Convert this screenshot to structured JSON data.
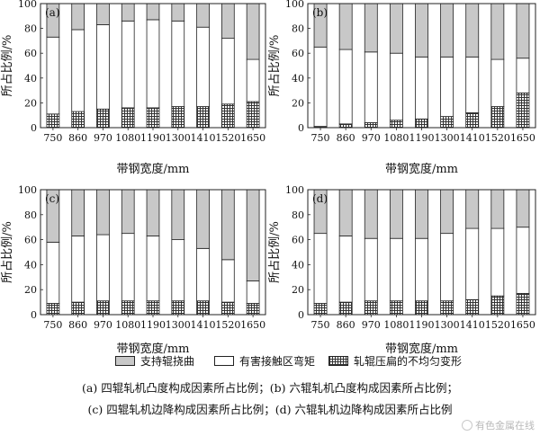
{
  "chart_data": [
    {
      "type": "bar",
      "panel_label": "(a)",
      "categories": [
        "750",
        "860",
        "970",
        "1080",
        "1190",
        "1300",
        "1410",
        "1520",
        "1650"
      ],
      "series": [
        {
          "name": "轧辊压扁的不均匀变形",
          "values": [
            11,
            13,
            15,
            16,
            16,
            17,
            17,
            19,
            21
          ]
        },
        {
          "name": "有害接触区弯矩",
          "values": [
            62,
            66,
            68,
            70,
            71,
            69,
            64,
            53,
            34
          ]
        },
        {
          "name": "支持辊挠曲",
          "values": [
            27,
            21,
            17,
            14,
            13,
            14,
            19,
            28,
            45
          ]
        }
      ],
      "stacked": true,
      "xlabel": "带钢宽度/mm",
      "ylabel": "所占比例/%",
      "ylim": [
        0,
        100
      ],
      "yticks": [
        "0",
        "20",
        "40",
        "60",
        "80",
        "100"
      ]
    },
    {
      "type": "bar",
      "panel_label": "(b)",
      "categories": [
        "750",
        "860",
        "970",
        "1080",
        "1190",
        "1300",
        "1410",
        "1520",
        "1650"
      ],
      "series": [
        {
          "name": "轧辊压扁的不均匀变形",
          "values": [
            1,
            3,
            4,
            6,
            7,
            9,
            12,
            17,
            28
          ]
        },
        {
          "name": "有害接触区弯矩",
          "values": [
            64,
            60,
            57,
            54,
            50,
            48,
            45,
            38,
            28
          ]
        },
        {
          "name": "支持辊挠曲",
          "values": [
            35,
            37,
            39,
            40,
            43,
            43,
            43,
            45,
            44
          ]
        }
      ],
      "stacked": true,
      "xlabel": "带钢宽度/mm",
      "ylabel": "所占比例/%",
      "ylim": [
        0,
        100
      ],
      "yticks": [
        "0",
        "20",
        "40",
        "60",
        "80",
        "100"
      ]
    },
    {
      "type": "bar",
      "panel_label": "(c)",
      "categories": [
        "750",
        "860",
        "970",
        "1080",
        "1190",
        "1300",
        "1410",
        "1520",
        "1650"
      ],
      "series": [
        {
          "name": "轧辊压扁的不均匀变形",
          "values": [
            9,
            10,
            11,
            11,
            11,
            11,
            11,
            10,
            9
          ]
        },
        {
          "name": "有害接触区弯矩",
          "values": [
            49,
            53,
            53,
            54,
            52,
            49,
            42,
            34,
            18
          ]
        },
        {
          "name": "支持辊挠曲",
          "values": [
            42,
            37,
            36,
            35,
            37,
            40,
            47,
            56,
            73
          ]
        }
      ],
      "stacked": true,
      "xlabel": "带钢宽度/mm",
      "ylabel": "所占比例/%",
      "ylim": [
        0,
        100
      ],
      "yticks": [
        "0",
        "20",
        "40",
        "60",
        "80",
        "100"
      ]
    },
    {
      "type": "bar",
      "panel_label": "(d)",
      "categories": [
        "750",
        "860",
        "970",
        "1080",
        "1190",
        "1300",
        "1410",
        "1520",
        "1650"
      ],
      "series": [
        {
          "name": "轧辊压扁的不均匀变形",
          "values": [
            9,
            10,
            11,
            11,
            11,
            11,
            12,
            15,
            17
          ]
        },
        {
          "name": "有害接触区弯矩",
          "values": [
            56,
            53,
            50,
            50,
            50,
            54,
            57,
            54,
            53
          ]
        },
        {
          "name": "支持辊挠曲",
          "values": [
            35,
            37,
            39,
            39,
            39,
            35,
            31,
            31,
            30
          ]
        }
      ],
      "stacked": true,
      "xlabel": "带钢宽度/mm",
      "ylabel": "所占比例/%",
      "ylim": [
        0,
        100
      ],
      "yticks": [
        "0",
        "20",
        "40",
        "60",
        "80",
        "100"
      ]
    }
  ],
  "legend": {
    "support_roll_bending": "支持辊挠曲",
    "harmful_contact_moment": "有害接触区弯矩",
    "roll_flattening": "轧辊压扁的不均匀变形"
  },
  "captions": {
    "line1": "(a) 四辊轧机凸度构成因素所占比例；(b) 六辊轧机凸度构成因素所占比例；",
    "line2": "(c) 四辊轧机边降构成因素所占比例；(d) 六辊轧机边降构成因素所占比例"
  },
  "watermark": "有色金属在线",
  "colors": {
    "support_roll_bending": "#c8c8c8",
    "harmful_contact_moment": "#ffffff",
    "roll_flattening_hatch": "#333333"
  }
}
